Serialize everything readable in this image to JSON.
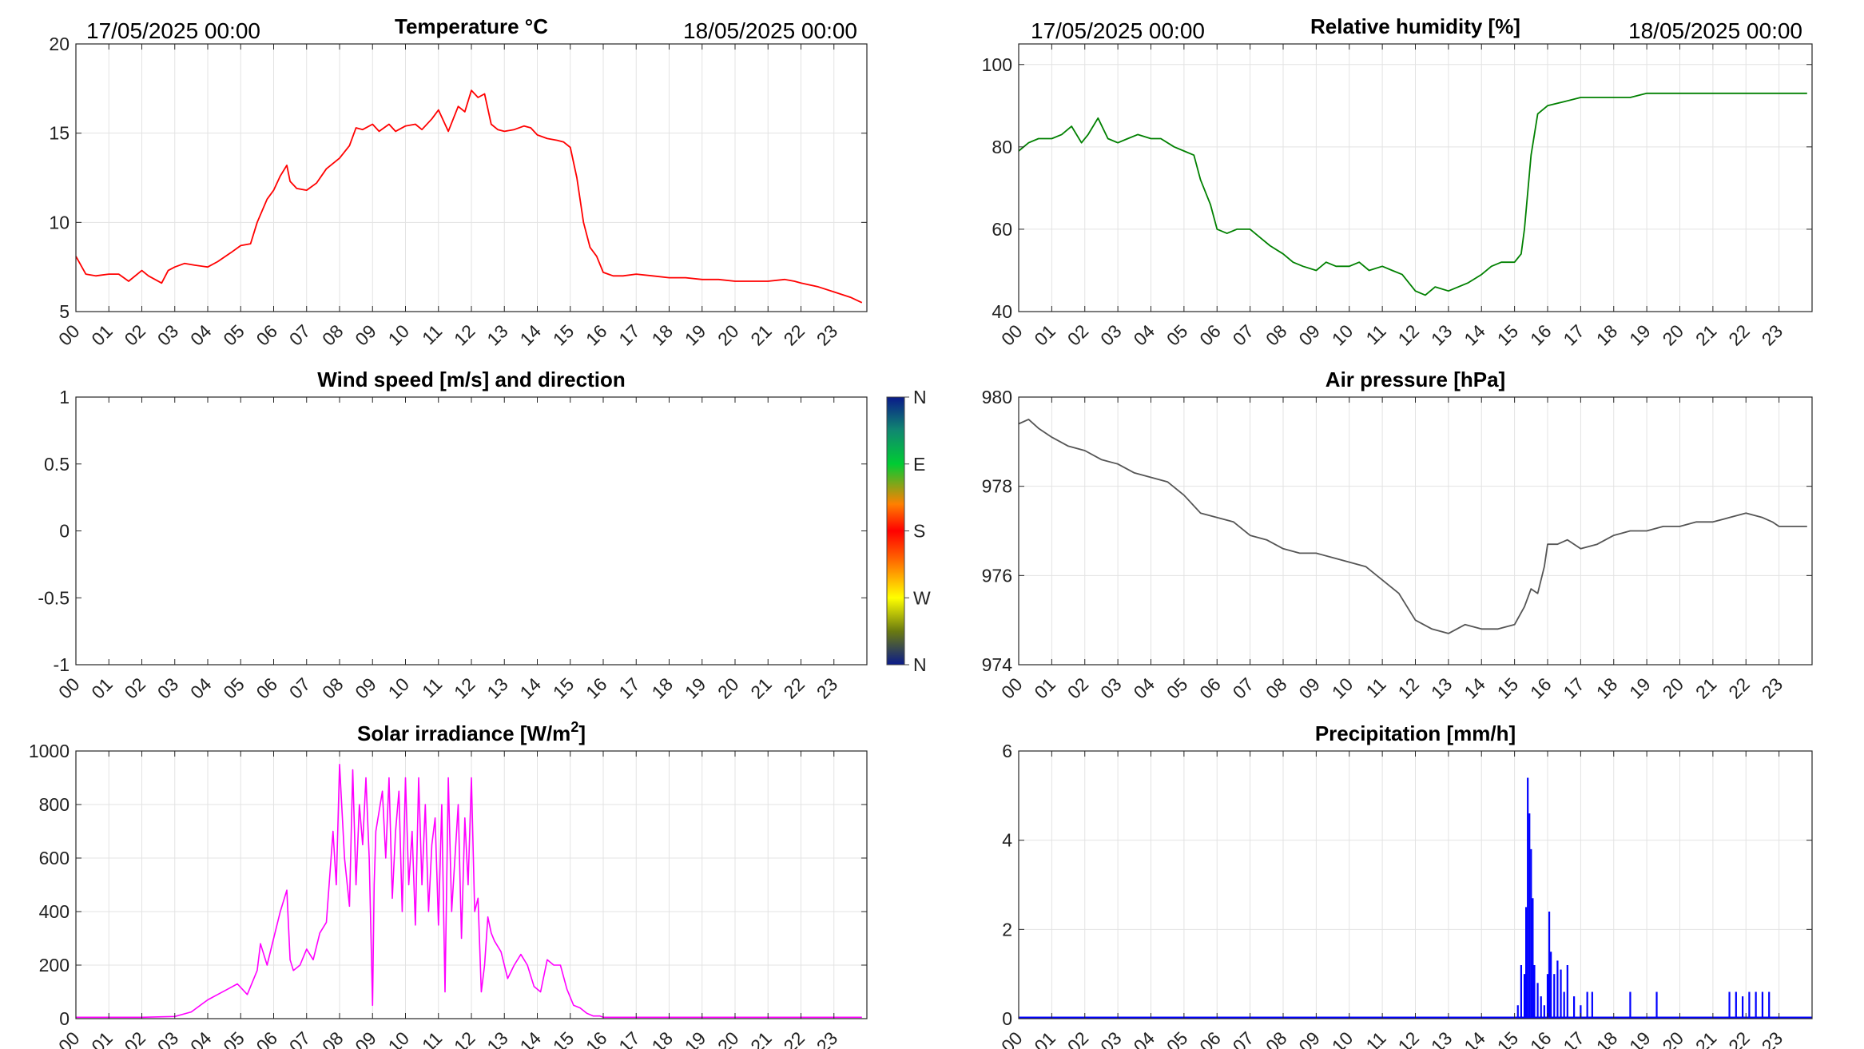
{
  "header": {
    "start_left": "17/05/2025 00:00",
    "end_left": "18/05/2025 00:00",
    "start_right": "17/05/2025 00:00",
    "end_right": "18/05/2025 00:00"
  },
  "x_ticks": [
    "00",
    "01",
    "02",
    "03",
    "04",
    "05",
    "06",
    "07",
    "08",
    "09",
    "10",
    "11",
    "12",
    "13",
    "14",
    "15",
    "16",
    "17",
    "18",
    "19",
    "20",
    "21",
    "22",
    "23"
  ],
  "colors": {
    "temperature": "#ff0000",
    "humidity": "#008000",
    "pressure": "#555555",
    "solar": "#ff00ff",
    "precip": "#0000ff"
  },
  "wind_colorbar": {
    "labels": [
      "N",
      "W",
      "S",
      "E",
      "N"
    ]
  },
  "chart_data": [
    {
      "id": "temperature",
      "type": "line",
      "title": "Temperature °C",
      "xlim": [
        0,
        24
      ],
      "ylim": [
        5,
        20
      ],
      "yticks": [
        "5",
        "10",
        "15",
        "20"
      ],
      "grid": true,
      "series": [
        {
          "x": [
            0,
            0.3,
            0.6,
            1.0,
            1.3,
            1.6,
            2.0,
            2.2,
            2.6,
            2.8,
            3.0,
            3.3,
            3.6,
            4.0,
            4.3,
            4.7,
            5.0,
            5.3,
            5.5,
            5.8,
            6.0,
            6.2,
            6.4,
            6.5,
            6.7,
            7.0,
            7.3,
            7.6,
            8.0,
            8.3,
            8.5,
            8.7,
            9.0,
            9.2,
            9.5,
            9.7,
            10.0,
            10.3,
            10.5,
            10.8,
            11.0,
            11.3,
            11.6,
            11.8,
            12.0,
            12.2,
            12.4,
            12.6,
            12.8,
            13.0,
            13.3,
            13.6,
            13.8,
            14.0,
            14.3,
            14.6,
            14.8,
            15.0,
            15.2,
            15.4,
            15.6,
            15.8,
            16.0,
            16.3,
            16.6,
            17.0,
            17.5,
            18.0,
            18.5,
            19.0,
            19.5,
            20.0,
            20.5,
            21.0,
            21.5,
            21.8,
            22.0,
            22.5,
            23.0,
            23.5,
            23.85
          ],
          "y": [
            8.1,
            7.1,
            7.0,
            7.1,
            7.1,
            6.7,
            7.3,
            7.0,
            6.6,
            7.3,
            7.5,
            7.7,
            7.6,
            7.5,
            7.8,
            8.3,
            8.7,
            8.8,
            10.0,
            11.3,
            11.8,
            12.6,
            13.2,
            12.3,
            11.9,
            11.8,
            12.2,
            13.0,
            13.6,
            14.3,
            15.3,
            15.2,
            15.5,
            15.1,
            15.5,
            15.1,
            15.4,
            15.5,
            15.2,
            15.8,
            16.3,
            15.1,
            16.5,
            16.2,
            17.4,
            17.0,
            17.2,
            15.5,
            15.2,
            15.1,
            15.2,
            15.4,
            15.3,
            14.9,
            14.7,
            14.6,
            14.5,
            14.2,
            12.5,
            10.0,
            8.6,
            8.1,
            7.2,
            7.0,
            7.0,
            7.1,
            7.0,
            6.9,
            6.9,
            6.8,
            6.8,
            6.7,
            6.7,
            6.7,
            6.8,
            6.7,
            6.6,
            6.4,
            6.1,
            5.8,
            5.5
          ]
        }
      ]
    },
    {
      "id": "humidity",
      "type": "line",
      "title": "Relative humidity [%]",
      "xlim": [
        0,
        24
      ],
      "ylim": [
        40,
        105
      ],
      "yticks": [
        "40",
        "60",
        "80",
        "100"
      ],
      "grid": true,
      "series": [
        {
          "x": [
            0,
            0.3,
            0.6,
            1.0,
            1.3,
            1.6,
            1.9,
            2.1,
            2.4,
            2.7,
            3.0,
            3.3,
            3.6,
            4.0,
            4.3,
            4.7,
            5.0,
            5.3,
            5.5,
            5.8,
            6.0,
            6.3,
            6.6,
            7.0,
            7.3,
            7.6,
            8.0,
            8.3,
            8.6,
            9.0,
            9.3,
            9.6,
            10.0,
            10.3,
            10.6,
            11.0,
            11.3,
            11.6,
            12.0,
            12.3,
            12.6,
            13.0,
            13.3,
            13.6,
            14.0,
            14.3,
            14.6,
            15.0,
            15.2,
            15.3,
            15.5,
            15.7,
            16.0,
            16.5,
            17.0,
            17.5,
            18.0,
            18.5,
            19.0,
            20.0,
            21.0,
            22.0,
            23.0,
            23.85
          ],
          "y": [
            79,
            81,
            82,
            82,
            83,
            85,
            81,
            83,
            87,
            82,
            81,
            82,
            83,
            82,
            82,
            80,
            79,
            78,
            72,
            66,
            60,
            59,
            60,
            60,
            58,
            56,
            54,
            52,
            51,
            50,
            52,
            51,
            51,
            52,
            50,
            51,
            50,
            49,
            45,
            44,
            46,
            45,
            46,
            47,
            49,
            51,
            52,
            52,
            54,
            60,
            78,
            88,
            90,
            91,
            92,
            92,
            92,
            92,
            93,
            93,
            93,
            93,
            93,
            93
          ]
        }
      ]
    },
    {
      "id": "wind",
      "type": "scatter",
      "title": "Wind speed [m/s] and direction",
      "xlim": [
        0,
        24
      ],
      "ylim": [
        -1,
        1
      ],
      "yticks": [
        "-1",
        "-0.5",
        "0",
        "0.5",
        "1"
      ],
      "grid": false,
      "series": []
    },
    {
      "id": "pressure",
      "type": "line",
      "title": "Air pressure [hPa]",
      "xlim": [
        0,
        24
      ],
      "ylim": [
        974,
        980
      ],
      "yticks": [
        "974",
        "976",
        "978",
        "980"
      ],
      "grid": true,
      "series": [
        {
          "x": [
            0,
            0.3,
            0.6,
            1.0,
            1.5,
            2.0,
            2.5,
            3.0,
            3.5,
            4.0,
            4.5,
            5.0,
            5.5,
            6.0,
            6.5,
            7.0,
            7.5,
            8.0,
            8.5,
            9.0,
            9.5,
            10.0,
            10.5,
            11.0,
            11.5,
            12.0,
            12.5,
            13.0,
            13.5,
            14.0,
            14.5,
            15.0,
            15.3,
            15.5,
            15.7,
            15.9,
            16.0,
            16.3,
            16.6,
            17.0,
            17.5,
            18.0,
            18.5,
            19.0,
            19.5,
            20.0,
            20.5,
            21.0,
            21.5,
            22.0,
            22.5,
            22.8,
            23.0,
            23.5,
            23.85
          ],
          "y": [
            979.4,
            979.5,
            979.3,
            979.1,
            978.9,
            978.8,
            978.6,
            978.5,
            978.3,
            978.2,
            978.1,
            977.8,
            977.4,
            977.3,
            977.2,
            976.9,
            976.8,
            976.6,
            976.5,
            976.5,
            976.4,
            976.3,
            976.2,
            975.9,
            975.6,
            975.0,
            974.8,
            974.7,
            974.9,
            974.8,
            974.8,
            974.9,
            975.3,
            975.7,
            975.6,
            976.2,
            976.7,
            976.7,
            976.8,
            976.6,
            976.7,
            976.9,
            977.0,
            977.0,
            977.1,
            977.1,
            977.2,
            977.2,
            977.3,
            977.4,
            977.3,
            977.2,
            977.1,
            977.1,
            977.1
          ]
        }
      ]
    },
    {
      "id": "solar",
      "type": "line",
      "title": "Solar irradiance [W/m",
      "title_sup": "2",
      "title_end": "]",
      "xlim": [
        0,
        24
      ],
      "ylim": [
        0,
        1000
      ],
      "yticks": [
        "0",
        "200",
        "400",
        "600",
        "800",
        "1000"
      ],
      "grid": true,
      "series": [
        {
          "x": [
            0,
            1,
            2,
            3.0,
            3.5,
            4.0,
            4.3,
            4.6,
            4.9,
            5.2,
            5.5,
            5.6,
            5.8,
            6.0,
            6.2,
            6.4,
            6.5,
            6.6,
            6.8,
            7.0,
            7.2,
            7.4,
            7.6,
            7.8,
            7.9,
            8.0,
            8.15,
            8.3,
            8.4,
            8.5,
            8.6,
            8.7,
            8.8,
            8.9,
            9.0,
            9.05,
            9.1,
            9.3,
            9.4,
            9.5,
            9.6,
            9.7,
            9.8,
            9.9,
            10.0,
            10.1,
            10.2,
            10.3,
            10.4,
            10.5,
            10.6,
            10.7,
            10.8,
            10.9,
            11.0,
            11.1,
            11.2,
            11.3,
            11.4,
            11.5,
            11.6,
            11.7,
            11.8,
            11.9,
            12.0,
            12.1,
            12.2,
            12.3,
            12.4,
            12.5,
            12.6,
            12.7,
            12.9,
            13.1,
            13.3,
            13.5,
            13.7,
            13.9,
            14.1,
            14.3,
            14.5,
            14.7,
            14.9,
            15.1,
            15.3,
            15.5,
            15.7,
            15.9,
            16.0,
            16.2,
            16.5,
            17.0,
            17.3,
            17.6,
            18.0,
            19.0,
            20.0,
            21.0,
            22.0,
            23.0,
            23.85
          ],
          "y": [
            5,
            5,
            5,
            8,
            25,
            70,
            90,
            110,
            130,
            90,
            180,
            280,
            200,
            300,
            400,
            480,
            220,
            180,
            200,
            260,
            220,
            320,
            360,
            700,
            500,
            950,
            600,
            420,
            930,
            500,
            800,
            650,
            900,
            600,
            50,
            500,
            700,
            850,
            600,
            900,
            450,
            700,
            850,
            400,
            900,
            500,
            700,
            350,
            900,
            500,
            800,
            400,
            650,
            750,
            350,
            800,
            100,
            900,
            400,
            600,
            800,
            300,
            750,
            500,
            900,
            400,
            450,
            100,
            200,
            380,
            320,
            290,
            250,
            150,
            200,
            240,
            200,
            120,
            100,
            220,
            200,
            200,
            110,
            50,
            40,
            20,
            10,
            10,
            5,
            5,
            5,
            5,
            5,
            5,
            5,
            5,
            5,
            5,
            5,
            5,
            5
          ]
        }
      ]
    },
    {
      "id": "precip",
      "type": "bar",
      "title": "Precipitation [mm/h]",
      "xlim": [
        0,
        24
      ],
      "ylim": [
        0,
        6
      ],
      "yticks": [
        "0",
        "2",
        "4",
        "6"
      ],
      "grid": true,
      "series": [
        {
          "x": [
            15.1,
            15.2,
            15.3,
            15.35,
            15.4,
            15.45,
            15.5,
            15.55,
            15.6,
            15.7,
            15.8,
            15.9,
            16.0,
            16.05,
            16.1,
            16.2,
            16.3,
            16.4,
            16.5,
            16.6,
            16.8,
            17.0,
            17.2,
            17.35,
            18.5,
            19.3,
            21.5,
            21.7,
            21.9,
            22.1,
            22.3,
            22.5,
            22.7
          ],
          "y": [
            0.3,
            1.2,
            1.0,
            2.5,
            5.4,
            4.6,
            3.8,
            2.7,
            1.2,
            0.8,
            0.5,
            0.3,
            1.0,
            2.4,
            1.5,
            1.0,
            1.3,
            1.1,
            0.6,
            1.2,
            0.5,
            0.3,
            0.6,
            0.6,
            0.6,
            0.6,
            0.6,
            0.6,
            0.5,
            0.6,
            0.6,
            0.6,
            0.6
          ]
        }
      ]
    }
  ]
}
